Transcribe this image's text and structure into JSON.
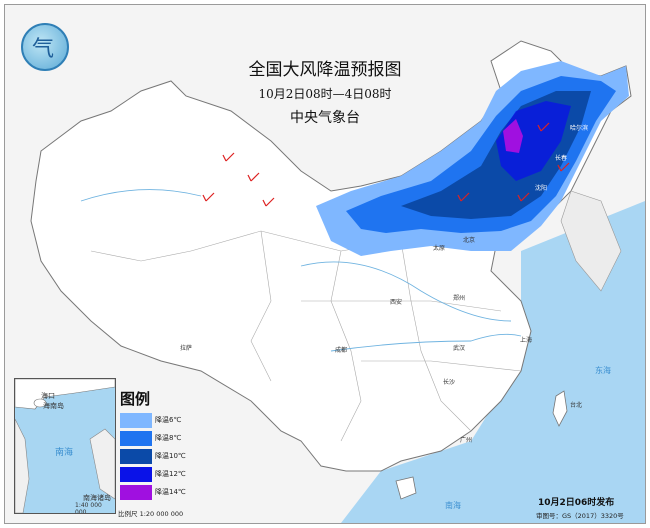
{
  "header": {
    "title": "全国大风降温预报图",
    "period": "10月2日08时—4日08时",
    "agency": "中央气象台"
  },
  "legend": {
    "title": "图例",
    "items": [
      {
        "label": "降温6℃",
        "color": "#7fb7ff"
      },
      {
        "label": "降温8℃",
        "color": "#1f74f0"
      },
      {
        "label": "降温10℃",
        "color": "#0b4aa8"
      },
      {
        "label": "降温12℃",
        "color": "#0a12e8"
      },
      {
        "label": "降温14℃",
        "color": "#a010e0"
      }
    ]
  },
  "inset": {
    "sea_label": "南海",
    "islands_label": "南海诸岛",
    "scale": "1:40 000 000",
    "haikou": "海口",
    "hainan": "海南岛"
  },
  "footer": {
    "scale": "比例尺 1:20 000 000",
    "published": "10月2日06时发布",
    "review_number": "审图号：GS（2017）3320号"
  },
  "places": {
    "beijing": "北京",
    "taiyuan": "太原",
    "xian": "西安",
    "zhengzhou": "郑州",
    "wuhan": "武汉",
    "chengdu": "成都",
    "lasa": "拉萨",
    "changsha": "长沙",
    "guangzhou": "广州",
    "shanghai": "上海",
    "taibei": "台北",
    "harbin": "哈尔滨",
    "changchun": "长春",
    "shenyang": "沈阳",
    "nanhai": "南海",
    "donghai": "东海"
  }
}
